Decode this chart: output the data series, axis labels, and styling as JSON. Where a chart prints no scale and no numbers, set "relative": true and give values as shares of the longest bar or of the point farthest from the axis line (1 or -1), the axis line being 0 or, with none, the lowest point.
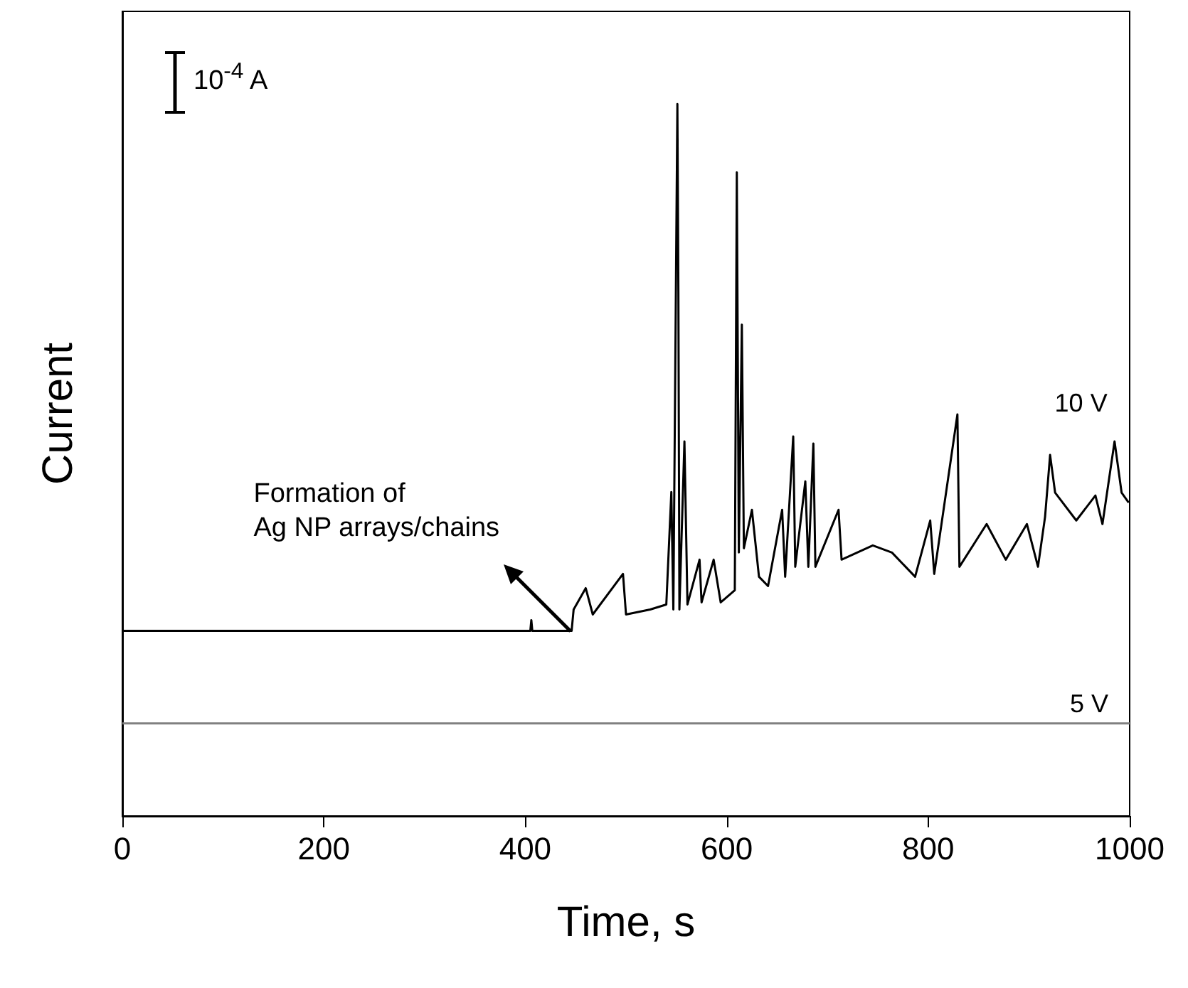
{
  "chart_data": {
    "type": "line",
    "relative": true,
    "xlabel": "Time, s",
    "ylabel": "Current",
    "xlim": [
      0,
      1000
    ],
    "xticks": [
      0,
      200,
      400,
      600,
      800,
      1000
    ],
    "grid": false,
    "legend": false,
    "marker": "none",
    "line_style": "solid",
    "annotations": [
      "10$^{-4}$ A",
      {
        "text": "Formation of\nAg NP arrays/chains",
        "x": 445,
        "y": 0.26
      }
    ],
    "series": [
      {
        "name": "10 V",
        "color": "#000000",
        "x": [
          0,
          200,
          405,
          406,
          407,
          446,
          448,
          460,
          467,
          497,
          500,
          524,
          540,
          545,
          547,
          551,
          552,
          553,
          558,
          561,
          573,
          575,
          587,
          594,
          608,
          610,
          612,
          615,
          617,
          625,
          632,
          641,
          655,
          658,
          666,
          668,
          678,
          681,
          686,
          688,
          711,
          714,
          745,
          764,
          787,
          802,
          806,
          829,
          831,
          858,
          877,
          898,
          909,
          916,
          921,
          926,
          947,
          966,
          973,
          985,
          992,
          999
        ],
        "values": [
          0.26,
          0.26,
          0.26,
          0.275,
          0.26,
          0.26,
          0.29,
          0.32,
          0.283,
          0.34,
          0.283,
          0.29,
          0.297,
          0.455,
          0.29,
          1.0,
          0.736,
          0.29,
          0.526,
          0.297,
          0.36,
          0.3,
          0.36,
          0.3,
          0.317,
          0.904,
          0.37,
          0.69,
          0.376,
          0.43,
          0.336,
          0.323,
          0.43,
          0.336,
          0.533,
          0.35,
          0.47,
          0.35,
          0.523,
          0.35,
          0.43,
          0.36,
          0.38,
          0.37,
          0.336,
          0.415,
          0.34,
          0.564,
          0.35,
          0.41,
          0.36,
          0.41,
          0.35,
          0.42,
          0.507,
          0.454,
          0.415,
          0.45,
          0.41,
          0.526,
          0.454,
          0.44
        ]
      },
      {
        "name": "5 V",
        "color": "#808080",
        "x": [
          0,
          1000
        ],
        "values": [
          0.13,
          0.13
        ]
      }
    ]
  }
}
